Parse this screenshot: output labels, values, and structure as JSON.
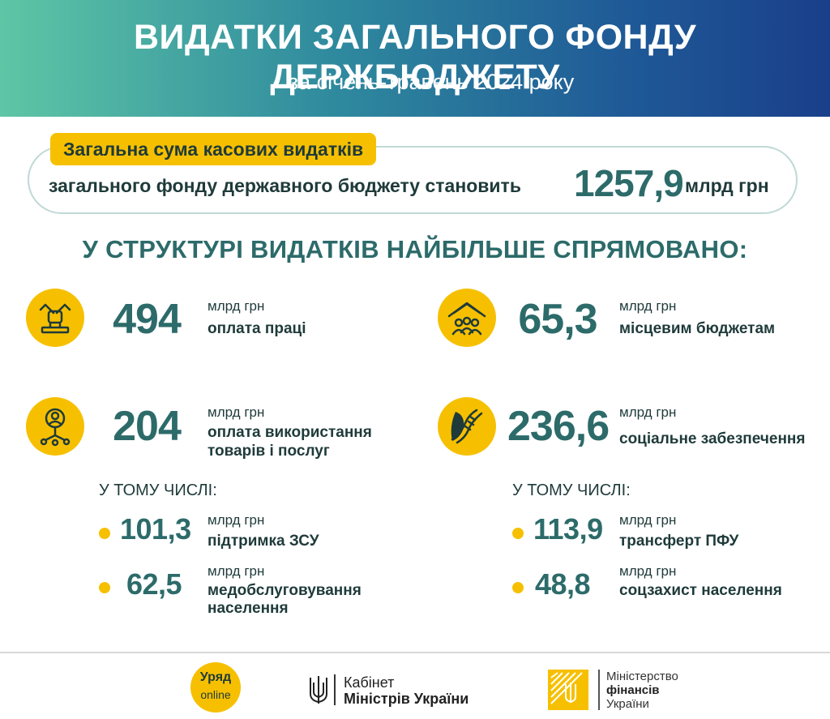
{
  "header": {
    "title": "ВИДАТКИ ЗАГАЛЬНОГО ФОНДУ ДЕРЖБЮДЖЕТУ",
    "subtitle": "за січень-травень 2024 року"
  },
  "total": {
    "pill": "Загальна сума касових видатків",
    "text": "загального фонду державного бюджету становить",
    "value": "1257,9",
    "unit": "млрд грн"
  },
  "section_heading": "У СТРУКТУРІ ВИДАТКІВ НАЙБІЛЬШЕ СПРЯМОВАНО:",
  "items": [
    {
      "icon": "wrench-fist-icon",
      "value": "494",
      "unit": "млрд грн",
      "label": "оплата праці"
    },
    {
      "icon": "houses-people-icon",
      "value": "65,3",
      "unit": "млрд грн",
      "label": "місцевим бюджетам"
    },
    {
      "icon": "person-network-icon",
      "value": "204",
      "unit": "млрд грн",
      "label": "оплата використання товарів і послуг",
      "label_line1": "оплата використання",
      "label_line2": "товарів і послуг"
    },
    {
      "icon": "helping-hands-icon",
      "value": "236,6",
      "unit": "млрд грн",
      "label": "соціальне забезпечення"
    }
  ],
  "left_breakdown": {
    "heading": "У ТОМУ ЧИСЛІ:",
    "rows": [
      {
        "value": "101,3",
        "unit": "млрд грн",
        "label": "підтримка ЗСУ"
      },
      {
        "value": "62,5",
        "unit": "млрд грн",
        "label": "медобслуговування населення",
        "label_line1": "медобслуговування",
        "label_line2": "населення"
      }
    ]
  },
  "right_breakdown": {
    "heading": "У ТОМУ ЧИСЛІ:",
    "rows": [
      {
        "value": "113,9",
        "unit": "млрд грн",
        "label": "трансферт ПФУ"
      },
      {
        "value": "48,8",
        "unit": "млрд грн",
        "label": "соцзахист населення"
      }
    ]
  },
  "footer": {
    "uryad": {
      "line1": "Уряд",
      "line2": "online"
    },
    "kmu": {
      "line1": "Кабінет",
      "line2": "Міністрів України"
    },
    "mof": {
      "line1": "Міністерство",
      "line2": "фінансів",
      "line3": "України"
    }
  },
  "colors": {
    "accent_yellow": "#f6c000",
    "teal_text": "#2c6b6a",
    "header_gradient_start": "#5ec6a5",
    "header_gradient_end": "#1a3f8a"
  }
}
